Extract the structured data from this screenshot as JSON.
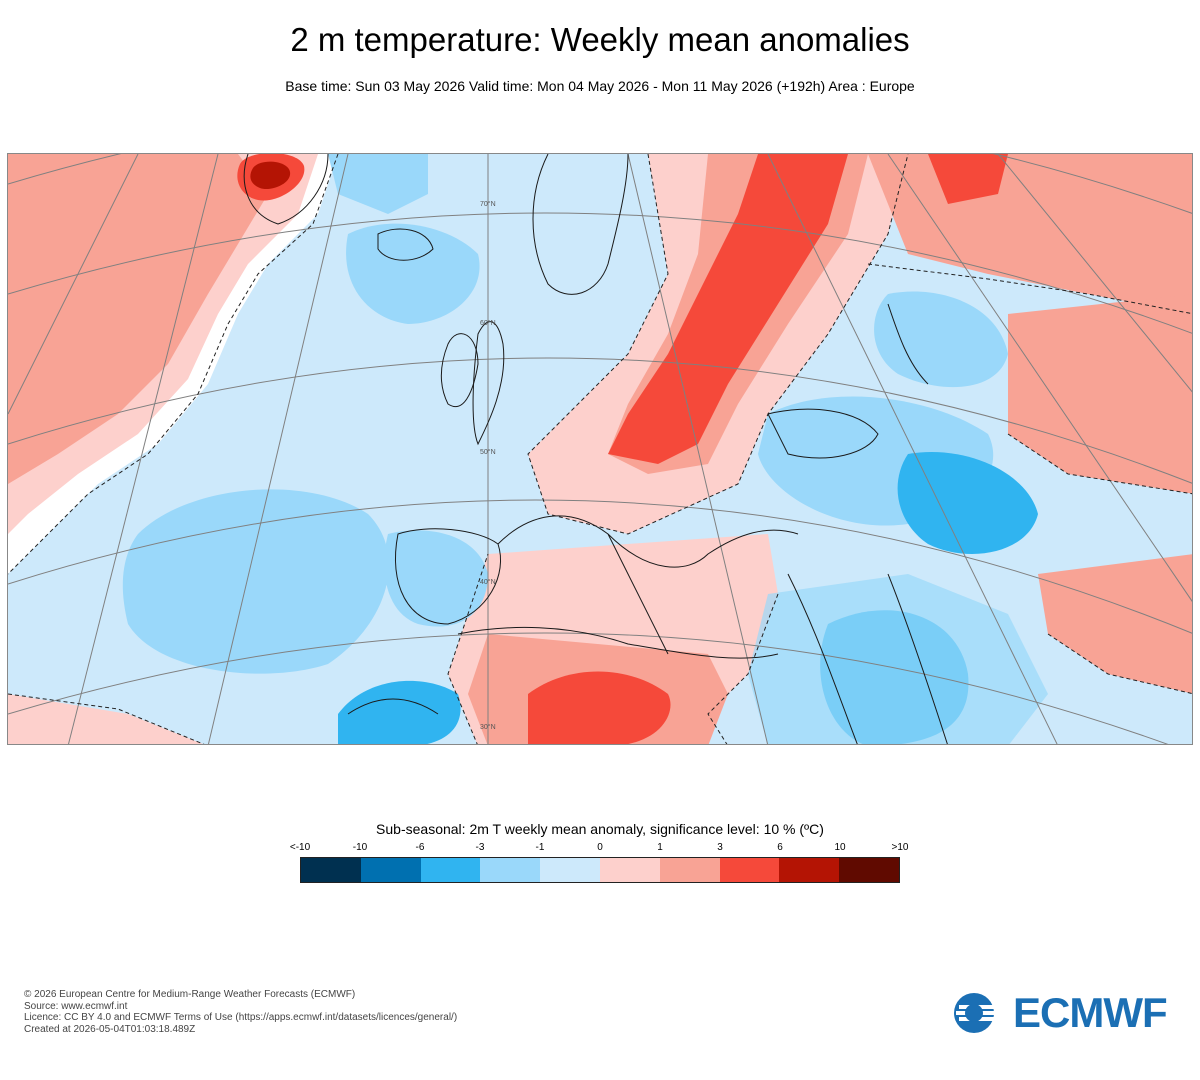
{
  "header": {
    "title": "2 m temperature: Weekly mean anomalies",
    "subtitle": "Base time: Sun 03 May 2026 Valid time: Mon 04 May 2026 - Mon 11 May 2026 (+192h) Area : Europe"
  },
  "map": {
    "grid_labels": [
      "70°N",
      "60°N",
      "50°N",
      "40°N",
      "30°N"
    ]
  },
  "legend": {
    "title": "Sub-seasonal: 2m T weekly mean anomaly, significance level: 10 % (ºC)",
    "ticks": [
      "<-10",
      "-10",
      "-6",
      "-3",
      "-1",
      "0",
      "1",
      "3",
      "6",
      "10",
      ">10"
    ],
    "colors": [
      "#003050",
      "#0070b0",
      "#30b4f0",
      "#9ad8fa",
      "#cde9fb",
      "#fdd0cc",
      "#f8a395",
      "#f5493a",
      "#b41404",
      "#600a00"
    ]
  },
  "footer": {
    "lines": [
      "© 2026 European Centre for Medium-Range Weather Forecasts (ECMWF)",
      "Source: www.ecmwf.int",
      "Licence: CC BY 4.0 and ECMWF Terms of Use (https://apps.ecmwf.int/datasets/licences/general/)",
      "Created at 2026-05-04T01:03:18.489Z"
    ]
  },
  "logo": {
    "text": "ECMWF",
    "color": "#1b6fb4"
  }
}
